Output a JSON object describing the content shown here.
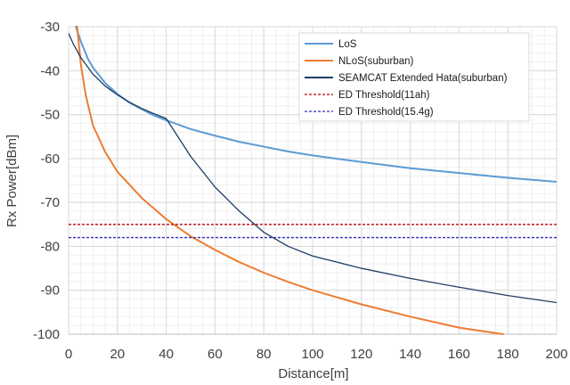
{
  "chart_data": {
    "type": "line",
    "xlabel": "Distance[m]",
    "ylabel": "Rx Power[dBm]",
    "xlim": [
      0,
      200
    ],
    "ylim": [
      -100,
      -30
    ],
    "x_ticks": [
      0,
      20,
      40,
      60,
      80,
      100,
      120,
      140,
      160,
      180,
      200
    ],
    "y_ticks": [
      -100,
      -90,
      -80,
      -70,
      -60,
      -50,
      -40,
      -30
    ],
    "grid": true,
    "legend_position": "top-right",
    "series": [
      {
        "name": "LoS",
        "color": "#5b9bd5",
        "style": "solid",
        "x": [
          3,
          5,
          8,
          10,
          15,
          20,
          25,
          30,
          35,
          40,
          50,
          60,
          70,
          80,
          90,
          100,
          120,
          140,
          160,
          180,
          200
        ],
        "y": [
          -30,
          -33.3,
          -37.4,
          -39.3,
          -42.8,
          -45.3,
          -47.3,
          -48.8,
          -50.2,
          -51.3,
          -53.3,
          -54.8,
          -56.2,
          -57.3,
          -58.4,
          -59.3,
          -60.8,
          -62.2,
          -63.3,
          -64.4,
          -65.3
        ]
      },
      {
        "name": "NLoS(suburban)",
        "color": "#ed7d31",
        "style": "solid",
        "x": [
          3.5,
          5,
          7,
          10,
          15,
          20,
          30,
          40,
          50,
          60,
          70,
          80,
          90,
          100,
          120,
          140,
          160,
          178
        ],
        "y": [
          -30,
          -38.5,
          -45.5,
          -52.5,
          -58.5,
          -63,
          -69,
          -73.8,
          -77.7,
          -80.8,
          -83.6,
          -86,
          -88.1,
          -90,
          -93.2,
          -96,
          -98.5,
          -100
        ]
      },
      {
        "name": "SEAMCAT Extended Hata(suburban)",
        "color": "#1f3d63",
        "style": "solid",
        "x": [
          0,
          2,
          5,
          10,
          15,
          20,
          25,
          30,
          35,
          40,
          50,
          60,
          70,
          80,
          90,
          100,
          120,
          140,
          160,
          180,
          200
        ],
        "y": [
          -31.5,
          -34,
          -37,
          -40.8,
          -43.5,
          -45.5,
          -47.2,
          -48.6,
          -49.8,
          -50.9,
          -59.5,
          -66.5,
          -72,
          -76.8,
          -80,
          -82.2,
          -85,
          -87.3,
          -89.3,
          -91.2,
          -92.8
        ]
      },
      {
        "name": "ED Threshold(11ah)",
        "color": "#c00000",
        "style": "dashed",
        "x": [
          0,
          200
        ],
        "y": [
          -75,
          -75
        ]
      },
      {
        "name": "ED Threshold(15.4g)",
        "color": "#2f2fbf",
        "style": "dashed",
        "x": [
          0,
          200
        ],
        "y": [
          -78,
          -78
        ]
      }
    ]
  }
}
